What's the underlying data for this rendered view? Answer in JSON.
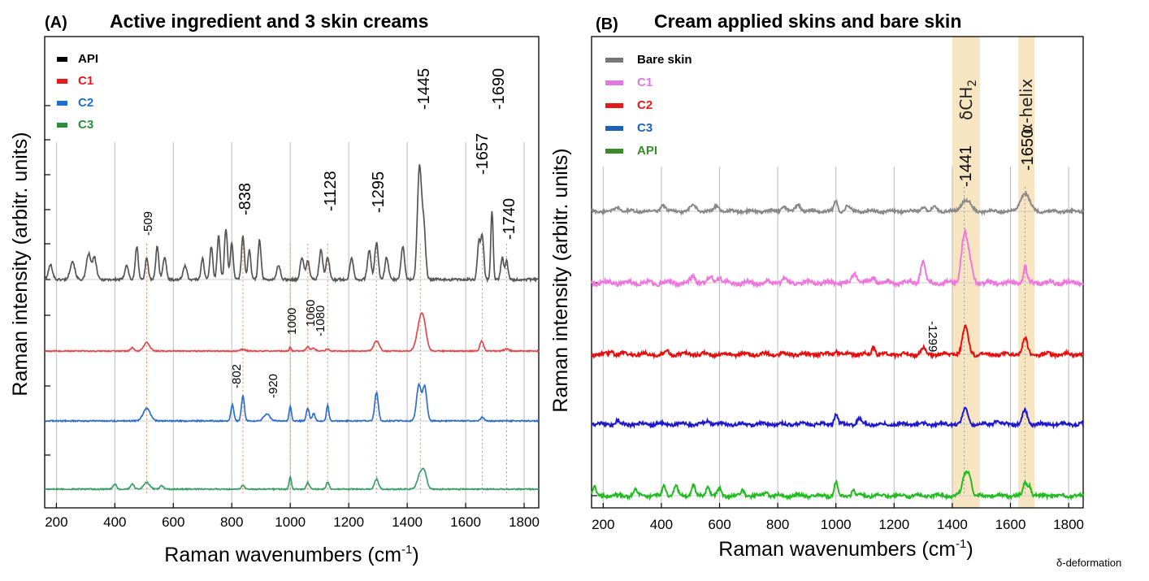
{
  "chart_data": [
    {
      "type": "line",
      "panel_label": "(A)",
      "title": "Active ingredient and 3 skin creams",
      "xlabel": "Raman wavenumbers (cm",
      "xlabel_sup": "-1",
      "xlabel_close": ")",
      "ylabel": "Raman intensity (arbitr. units)",
      "xlim": [
        160,
        1850
      ],
      "x_ticks": [
        200,
        400,
        600,
        800,
        1000,
        1200,
        1400,
        1600,
        1800
      ],
      "grid": true,
      "legend_position": "top-left",
      "series": [
        {
          "name": "API",
          "color": "#555555",
          "legend_color": "#000000",
          "baseline": 3,
          "scale": 2.05,
          "peaks": [
            [
              180,
              0.2,
              7
            ],
            [
              255,
              0.25,
              8
            ],
            [
              310,
              0.35,
              7
            ],
            [
              330,
              0.3,
              7
            ],
            [
              440,
              0.2,
              6
            ],
            [
              475,
              0.45,
              5
            ],
            [
              509,
              0.3,
              5
            ],
            [
              545,
              0.45,
              5
            ],
            [
              570,
              0.3,
              6
            ],
            [
              640,
              0.2,
              6
            ],
            [
              700,
              0.3,
              5
            ],
            [
              730,
              0.45,
              5
            ],
            [
              755,
              0.6,
              5
            ],
            [
              780,
              0.7,
              5
            ],
            [
              800,
              0.5,
              5
            ],
            [
              838,
              0.6,
              5
            ],
            [
              860,
              0.4,
              5
            ],
            [
              895,
              0.55,
              5
            ],
            [
              960,
              0.2,
              6
            ],
            [
              1040,
              0.3,
              6
            ],
            [
              1060,
              0.25,
              6
            ],
            [
              1105,
              0.4,
              6
            ],
            [
              1128,
              0.3,
              6
            ],
            [
              1210,
              0.3,
              6
            ],
            [
              1270,
              0.4,
              6
            ],
            [
              1295,
              0.5,
              6
            ],
            [
              1330,
              0.3,
              6
            ],
            [
              1385,
              0.45,
              6
            ],
            [
              1438,
              0.8,
              6
            ],
            [
              1445,
              1.0,
              6
            ],
            [
              1457,
              0.7,
              6
            ],
            [
              1645,
              0.5,
              5
            ],
            [
              1657,
              0.6,
              5
            ],
            [
              1690,
              0.95,
              4
            ],
            [
              1725,
              0.3,
              5
            ],
            [
              1740,
              0.25,
              5
            ]
          ]
        },
        {
          "name": "C1",
          "color": "#e0484a",
          "legend_color": "#e31a1c",
          "baseline": 2,
          "scale": 0.95,
          "peaks": [
            [
              509,
              0.25,
              10
            ],
            [
              460,
              0.1,
              6
            ],
            [
              838,
              0.05,
              8
            ],
            [
              1000,
              0.12,
              3
            ],
            [
              1060,
              0.12,
              6
            ],
            [
              1080,
              0.08,
              6
            ],
            [
              1128,
              0.06,
              6
            ],
            [
              1295,
              0.3,
              9
            ],
            [
              1445,
              0.8,
              12
            ],
            [
              1457,
              0.5,
              10
            ],
            [
              1655,
              0.3,
              6
            ],
            [
              1740,
              0.06,
              8
            ]
          ]
        },
        {
          "name": "C2",
          "color": "#2e6fcd",
          "legend_color": "#1f6fd0",
          "baseline": 1,
          "scale": 1.0,
          "peaks": [
            [
              509,
              0.35,
              12
            ],
            [
              802,
              0.45,
              5
            ],
            [
              838,
              0.7,
              5
            ],
            [
              920,
              0.2,
              10
            ],
            [
              1000,
              0.4,
              4
            ],
            [
              1060,
              0.35,
              5
            ],
            [
              1080,
              0.2,
              5
            ],
            [
              1128,
              0.45,
              4
            ],
            [
              1295,
              0.8,
              6
            ],
            [
              1440,
              1.0,
              8
            ],
            [
              1460,
              0.95,
              7
            ],
            [
              1657,
              0.1,
              6
            ]
          ]
        },
        {
          "name": "C3",
          "color": "#3a9e6a",
          "legend_color": "#2e8b3e",
          "baseline": 0,
          "scale": 0.95,
          "peaks": [
            [
              400,
              0.15,
              6
            ],
            [
              460,
              0.15,
              6
            ],
            [
              509,
              0.2,
              10
            ],
            [
              560,
              0.1,
              6
            ],
            [
              838,
              0.1,
              6
            ],
            [
              1000,
              0.35,
              4
            ],
            [
              1060,
              0.2,
              5
            ],
            [
              1128,
              0.2,
              5
            ],
            [
              1295,
              0.3,
              7
            ],
            [
              1445,
              0.45,
              10
            ],
            [
              1460,
              0.4,
              8
            ]
          ]
        }
      ],
      "peak_labels": [
        {
          "label": "-509",
          "x": 509,
          "size": "small"
        },
        {
          "label": "-838",
          "x": 838,
          "size": "large"
        },
        {
          "label": "-1128",
          "x": 1128,
          "size": "large"
        },
        {
          "label": "-1295",
          "x": 1295,
          "size": "large"
        },
        {
          "label": "-1445",
          "x": 1445,
          "size": "large"
        },
        {
          "label": "-1657",
          "x": 1657,
          "size": "large"
        },
        {
          "label": "-1690",
          "x": 1690,
          "size": "large"
        },
        {
          "label": "-1740",
          "x": 1740,
          "size": "large"
        },
        {
          "label": "1000",
          "x": 1000,
          "size": "small"
        },
        {
          "label": "1060",
          "x": 1060,
          "size": "small"
        },
        {
          "label": "-1080",
          "x": 1080,
          "size": "small"
        },
        {
          "label": "-802",
          "x": 802,
          "size": "small"
        },
        {
          "label": "-920",
          "x": 920,
          "size": "small"
        }
      ],
      "reference_lines": [
        509,
        838,
        1000,
        1060,
        1128,
        1295,
        1445,
        1657,
        1740
      ]
    },
    {
      "type": "line",
      "panel_label": "(B)",
      "title": "Cream applied skins and bare skin",
      "xlabel": "Raman wavenumbers (cm",
      "xlabel_sup": "-1",
      "xlabel_close": ")",
      "ylabel": "Raman intensity (arbitr. units)",
      "xlim": [
        160,
        1850
      ],
      "x_ticks": [
        200,
        400,
        600,
        800,
        1000,
        1200,
        1400,
        1600,
        1800
      ],
      "grid": true,
      "legend_position": "top-left",
      "bands": [
        {
          "range": [
            1400,
            1495
          ],
          "label": "δCH",
          "label_sub": "2",
          "color": "#f5deb3"
        },
        {
          "range": [
            1627,
            1683
          ],
          "label": "α-helix",
          "color": "#f5deb3"
        }
      ],
      "series": [
        {
          "name": "Bare skin",
          "color": "#888888",
          "legend_color": "#777777",
          "baseline": 4,
          "scale": 0.7,
          "peaks": [
            [
              250,
              0.15,
              8
            ],
            [
              405,
              0.25,
              8
            ],
            [
              510,
              0.2,
              10
            ],
            [
              590,
              0.2,
              8
            ],
            [
              820,
              0.2,
              8
            ],
            [
              870,
              0.25,
              8
            ],
            [
              1000,
              0.35,
              6
            ],
            [
              1040,
              0.2,
              8
            ],
            [
              1300,
              0.15,
              8
            ],
            [
              1340,
              0.15,
              8
            ],
            [
              1441,
              0.35,
              12
            ],
            [
              1460,
              0.2,
              10
            ],
            [
              1650,
              0.65,
              15
            ]
          ]
        },
        {
          "name": "C1",
          "color": "#ee77dd",
          "legend_color": "#e377e0",
          "baseline": 3,
          "scale": 1.15,
          "peaks": [
            [
              510,
              0.15,
              8
            ],
            [
              570,
              0.12,
              8
            ],
            [
              600,
              0.12,
              8
            ],
            [
              820,
              0.08,
              8
            ],
            [
              1065,
              0.2,
              8
            ],
            [
              1130,
              0.1,
              8
            ],
            [
              1299,
              0.45,
              8
            ],
            [
              1441,
              1.0,
              10
            ],
            [
              1460,
              0.4,
              10
            ],
            [
              1650,
              0.35,
              6
            ]
          ]
        },
        {
          "name": "C2",
          "color": "#e41010",
          "legend_color": "#e31a1c",
          "baseline": 2,
          "scale": 0.95,
          "peaks": [
            [
              230,
              0.1,
              6
            ],
            [
              420,
              0.1,
              6
            ],
            [
              1000,
              0.1,
              6
            ],
            [
              1130,
              0.2,
              6
            ],
            [
              1300,
              0.15,
              8
            ],
            [
              1445,
              0.7,
              10
            ],
            [
              1650,
              0.4,
              8
            ]
          ]
        },
        {
          "name": "C3",
          "color": "#1f18cc",
          "legend_color": "#1a62b7",
          "baseline": 1,
          "scale": 0.85,
          "peaks": [
            [
              250,
              0.1,
              6
            ],
            [
              560,
              0.12,
              8
            ],
            [
              1000,
              0.3,
              6
            ],
            [
              1080,
              0.15,
              8
            ],
            [
              1445,
              0.45,
              9
            ],
            [
              1550,
              0.1,
              8
            ],
            [
              1650,
              0.4,
              8
            ]
          ]
        },
        {
          "name": "API",
          "color": "#22bb22",
          "legend_color": "#3a8a2a",
          "baseline": 0,
          "scale": 0.85,
          "peaks": [
            [
              170,
              0.25,
              6
            ],
            [
              310,
              0.15,
              6
            ],
            [
              410,
              0.3,
              6
            ],
            [
              450,
              0.3,
              6
            ],
            [
              510,
              0.3,
              6
            ],
            [
              560,
              0.3,
              6
            ],
            [
              600,
              0.2,
              6
            ],
            [
              680,
              0.15,
              6
            ],
            [
              760,
              0.12,
              6
            ],
            [
              1000,
              0.4,
              5
            ],
            [
              1060,
              0.15,
              6
            ],
            [
              1445,
              0.6,
              10
            ],
            [
              1460,
              0.4,
              8
            ],
            [
              1650,
              0.4,
              6
            ],
            [
              1665,
              0.3,
              6
            ]
          ]
        }
      ],
      "peak_labels": [
        {
          "label": "-1441",
          "x": 1441,
          "size": "large"
        },
        {
          "label": "-1650",
          "x": 1650,
          "size": "large"
        },
        {
          "label": "-1299",
          "x": 1299,
          "size": "small"
        }
      ],
      "reference_lines": [
        1441,
        1650
      ]
    }
  ],
  "footnote": "δ-deformation"
}
